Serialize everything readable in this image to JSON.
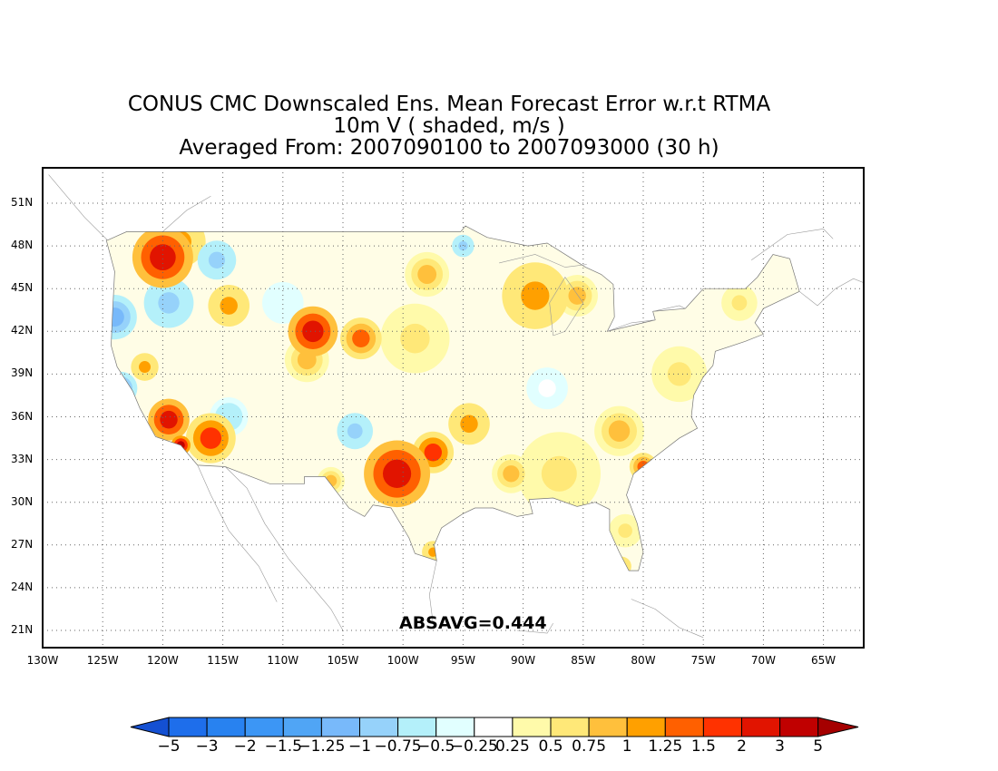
{
  "title": {
    "line1": "CONUS CMC Downscaled Ens. Mean Forecast Error w.r.t RTMA",
    "line2": "10m V ( shaded, m/s )",
    "line3": "Averaged From: 2007090100 to 2007093000 (30 h)"
  },
  "map": {
    "lat_labels": [
      "51N",
      "48N",
      "45N",
      "42N",
      "39N",
      "36N",
      "33N",
      "30N",
      "27N",
      "24N",
      "21N"
    ],
    "lon_labels": [
      "130W",
      "125W",
      "120W",
      "115W",
      "110W",
      "105W",
      "100W",
      "95W",
      "90W",
      "85W",
      "80W",
      "75W",
      "70W",
      "65W"
    ],
    "grid": true,
    "absavg_label": "ABSAVG=0.444",
    "blobs": [
      {
        "lon": -120.0,
        "lat": 47.2,
        "value": 2.0,
        "size": 2.2
      },
      {
        "lon": -118.5,
        "lat": 48.3,
        "value": 1.0,
        "size": 1.8
      },
      {
        "lon": -124.0,
        "lat": 43.0,
        "value": -1.25,
        "size": 1.6
      },
      {
        "lon": -123.5,
        "lat": 38.0,
        "value": -1.25,
        "size": 1.2
      },
      {
        "lon": -119.5,
        "lat": 44.0,
        "value": -1.0,
        "size": 1.8
      },
      {
        "lon": -115.5,
        "lat": 47.0,
        "value": -1.0,
        "size": 1.4
      },
      {
        "lon": -114.5,
        "lat": 43.8,
        "value": 1.0,
        "size": 1.5
      },
      {
        "lon": -107.5,
        "lat": 42.0,
        "value": 2.0,
        "size": 1.8
      },
      {
        "lon": -103.5,
        "lat": 41.5,
        "value": 1.25,
        "size": 1.5
      },
      {
        "lon": -121.5,
        "lat": 39.5,
        "value": 1.0,
        "size": 1.0
      },
      {
        "lon": -119.5,
        "lat": 35.8,
        "value": 2.0,
        "size": 1.5
      },
      {
        "lon": -116.0,
        "lat": 34.5,
        "value": 1.5,
        "size": 1.8
      },
      {
        "lon": -118.5,
        "lat": 34.0,
        "value": 3.0,
        "size": 0.7
      },
      {
        "lon": -114.5,
        "lat": 36.0,
        "value": -0.75,
        "size": 1.4
      },
      {
        "lon": -108.0,
        "lat": 40.0,
        "value": 0.75,
        "size": 1.6
      },
      {
        "lon": -104.0,
        "lat": 35.0,
        "value": -1.0,
        "size": 1.3
      },
      {
        "lon": -100.5,
        "lat": 32.0,
        "value": 2.0,
        "size": 2.4
      },
      {
        "lon": -97.5,
        "lat": 33.5,
        "value": 1.5,
        "size": 1.5
      },
      {
        "lon": -94.5,
        "lat": 35.5,
        "value": 1.0,
        "size": 1.5
      },
      {
        "lon": -98.0,
        "lat": 46.0,
        "value": 0.75,
        "size": 1.6
      },
      {
        "lon": -89.0,
        "lat": 44.5,
        "value": 1.0,
        "size": 2.4
      },
      {
        "lon": -85.5,
        "lat": 44.5,
        "value": 0.75,
        "size": 1.5
      },
      {
        "lon": -99.0,
        "lat": 41.5,
        "value": 0.5,
        "size": 2.5
      },
      {
        "lon": -87.0,
        "lat": 32.0,
        "value": 0.5,
        "size": 3.0
      },
      {
        "lon": -82.0,
        "lat": 35.0,
        "value": 0.75,
        "size": 1.8
      },
      {
        "lon": -80.0,
        "lat": 32.5,
        "value": 1.25,
        "size": 1.0
      },
      {
        "lon": -77.0,
        "lat": 39.0,
        "value": 0.5,
        "size": 2.0
      },
      {
        "lon": -72.0,
        "lat": 44.0,
        "value": 0.5,
        "size": 1.3
      },
      {
        "lon": -81.5,
        "lat": 28.0,
        "value": 0.5,
        "size": 1.2
      },
      {
        "lon": -81.8,
        "lat": 25.5,
        "value": 1.0,
        "size": 0.7
      },
      {
        "lon": -97.5,
        "lat": 26.5,
        "value": 1.0,
        "size": 0.8
      },
      {
        "lon": -88.0,
        "lat": 38.0,
        "value": -0.25,
        "size": 1.5
      },
      {
        "lon": -110.0,
        "lat": 44.0,
        "value": -0.5,
        "size": 1.5
      },
      {
        "lon": -95.0,
        "lat": 48.0,
        "value": -1.0,
        "size": 0.8
      },
      {
        "lon": -91.0,
        "lat": 32.0,
        "value": 0.75,
        "size": 1.4
      },
      {
        "lon": -106.0,
        "lat": 31.5,
        "value": 0.75,
        "size": 1.0
      }
    ]
  },
  "colorbar": {
    "colors": [
      "#1e6eeb",
      "#2882f0",
      "#3c96f5",
      "#50a5f5",
      "#78b9fa",
      "#96d2fa",
      "#b4f0fa",
      "#e1ffff",
      "#ffffff",
      "#fffaaa",
      "#ffe878",
      "#ffc03c",
      "#ffa000",
      "#ff6000",
      "#ff3200",
      "#e11400",
      "#c00000"
    ],
    "under_color": "#1450d2",
    "over_color": "#a50000",
    "tick_labels": [
      "-5",
      "-3",
      "-2",
      "-1.5",
      "-1.25",
      "-1",
      "-0.75",
      "-0.5",
      "-0.25",
      "0.25",
      "0.5",
      "0.75",
      "1",
      "1.25",
      "1.5",
      "2",
      "3",
      "5"
    ],
    "levels": [
      -5,
      -3,
      -2,
      -1.5,
      -1.25,
      -1,
      -0.75,
      -0.5,
      -0.25,
      0.25,
      0.5,
      0.75,
      1,
      1.25,
      1.5,
      2,
      3,
      5
    ]
  }
}
